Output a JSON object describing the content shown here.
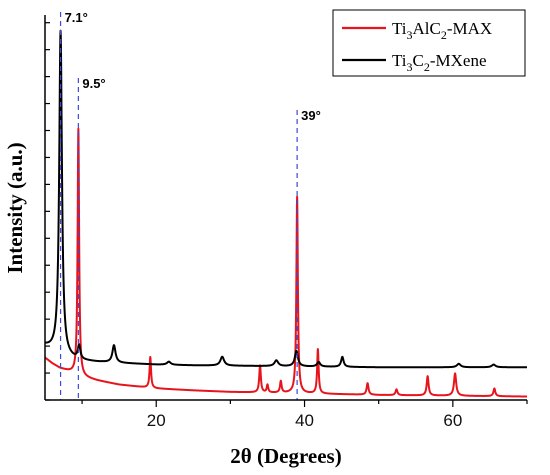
{
  "chart_data": {
    "type": "line",
    "xlabel": "2θ (Degrees)",
    "ylabel": "Intensity (a.u.)",
    "xlim": [
      5,
      70
    ],
    "ylim": [
      0,
      100
    ],
    "x_ticks": [
      20,
      40,
      60
    ],
    "y_ticks_labeled": false,
    "grid": false,
    "legend_position": "top-right",
    "series": [
      {
        "name": "Ti3AlC2-MAX",
        "label_parts": [
          {
            "t": "Ti",
            "sub": false
          },
          {
            "t": "3",
            "sub": true
          },
          {
            "t": "AlC",
            "sub": false
          },
          {
            "t": "2",
            "sub": true
          },
          {
            "t": "-MAX",
            "sub": false
          }
        ],
        "color": "#e8141b",
        "baseline": [
          [
            5,
            11
          ],
          [
            6,
            9.5
          ],
          [
            7,
            8.3
          ],
          [
            8,
            7.6
          ],
          [
            9,
            6.9
          ],
          [
            10,
            6.0
          ],
          [
            12,
            5.1
          ],
          [
            15,
            4.0
          ],
          [
            20,
            3.0
          ],
          [
            25,
            2.5
          ],
          [
            30,
            2.1
          ],
          [
            35,
            1.9
          ],
          [
            40,
            1.7
          ],
          [
            45,
            1.5
          ],
          [
            50,
            1.3
          ],
          [
            55,
            1.2
          ],
          [
            60,
            1.1
          ],
          [
            65,
            1.0
          ],
          [
            70,
            0.9
          ]
        ],
        "peaks": [
          {
            "x": 9.5,
            "h": 64,
            "w": 0.12
          },
          {
            "x": 19.2,
            "h": 8,
            "w": 0.12
          },
          {
            "x": 34.0,
            "h": 7,
            "w": 0.13
          },
          {
            "x": 35.0,
            "h": 2,
            "w": 0.12
          },
          {
            "x": 36.8,
            "h": 3,
            "w": 0.13
          },
          {
            "x": 39.0,
            "h": 51,
            "w": 0.12
          },
          {
            "x": 41.8,
            "h": 11.5,
            "w": 0.12
          },
          {
            "x": 48.5,
            "h": 3,
            "w": 0.15
          },
          {
            "x": 52.4,
            "h": 1.5,
            "w": 0.15
          },
          {
            "x": 56.6,
            "h": 5,
            "w": 0.15
          },
          {
            "x": 60.3,
            "h": 5.8,
            "w": 0.18
          },
          {
            "x": 65.6,
            "h": 2,
            "w": 0.15
          }
        ]
      },
      {
        "name": "Ti3C2-MXene",
        "label_parts": [
          {
            "t": "Ti",
            "sub": false
          },
          {
            "t": "3",
            "sub": true
          },
          {
            "t": "C",
            "sub": false
          },
          {
            "t": "2",
            "sub": true
          },
          {
            "t": "-MXene",
            "sub": false
          }
        ],
        "color": "#000000",
        "baseline": [
          [
            5,
            14
          ],
          [
            6,
            13
          ],
          [
            7,
            12
          ],
          [
            8,
            11
          ],
          [
            9,
            10.5
          ],
          [
            10,
            10.2
          ],
          [
            12,
            9.9
          ],
          [
            15,
            9.6
          ],
          [
            20,
            9.2
          ],
          [
            25,
            9.0
          ],
          [
            30,
            8.9
          ],
          [
            35,
            8.8
          ],
          [
            40,
            8.7
          ],
          [
            45,
            8.6
          ],
          [
            50,
            8.5
          ],
          [
            55,
            8.5
          ],
          [
            60,
            8.5
          ],
          [
            65,
            8.5
          ],
          [
            70,
            8.5
          ]
        ],
        "peaks": [
          {
            "x": 7.1,
            "h": 84,
            "w": 0.22
          },
          {
            "x": 9.6,
            "h": 3.5,
            "w": 0.2
          },
          {
            "x": 14.3,
            "h": 4.5,
            "w": 0.25
          },
          {
            "x": 21.7,
            "h": 0.8,
            "w": 0.3
          },
          {
            "x": 28.9,
            "h": 2.3,
            "w": 0.3
          },
          {
            "x": 36.2,
            "h": 1.5,
            "w": 0.3
          },
          {
            "x": 38.9,
            "h": 4,
            "w": 0.25
          },
          {
            "x": 41.9,
            "h": 1.2,
            "w": 0.25
          },
          {
            "x": 45.1,
            "h": 2.6,
            "w": 0.2
          },
          {
            "x": 60.8,
            "h": 0.9,
            "w": 0.3
          },
          {
            "x": 65.5,
            "h": 0.7,
            "w": 0.3
          }
        ]
      }
    ],
    "annotations": [
      {
        "x": 7.1,
        "label": "7.1°"
      },
      {
        "x": 9.5,
        "label": "9.5°"
      },
      {
        "x": 39,
        "label": "39°"
      }
    ]
  }
}
